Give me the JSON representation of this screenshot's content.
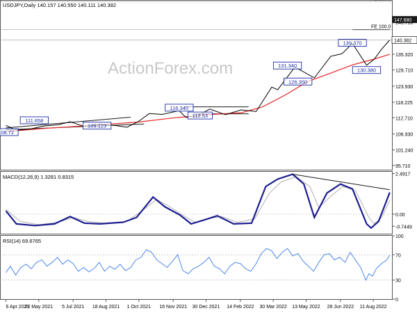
{
  "chart_data": {
    "type": "line",
    "main": {
      "header": "USDJPY,Daily  140.157 140.550 140.111 140.382",
      "watermark": "ActionForex.com",
      "ylim": [
        94.2,
        154.4
      ],
      "y_ticks": [
        "146.710",
        "141.015",
        "135.320",
        "129.710",
        "123.930",
        "118.225",
        "112.710",
        "106.930",
        "101.240",
        "95.710"
      ],
      "current_price": "140.382",
      "fe_labels": [
        {
          "text": "FE 100.0",
          "price": 154.0
        },
        {
          "text": "147.680",
          "price": 147.68,
          "badge": true
        },
        {
          "text": "FE 100.0",
          "price": 144.1
        }
      ],
      "labels": [
        {
          "text": "111.658",
          "date": "2021-05-14",
          "price": 111.8
        },
        {
          "text": "109.123",
          "date": "2021-08-06",
          "price": 109.9
        },
        {
          "text": "108.72",
          "date": "2021-04-06",
          "price": 107.6
        },
        {
          "text": "116.340",
          "date": "2021-11-24",
          "price": 116.3
        },
        {
          "text": "112.53",
          "date": "2021-12-22",
          "price": 113.5
        },
        {
          "text": "131.340",
          "date": "2022-04-18",
          "price": 131.3
        },
        {
          "text": "126.350",
          "date": "2022-05-02",
          "price": 125.6
        },
        {
          "text": "139.370",
          "date": "2022-07-14",
          "price": 139.4
        },
        {
          "text": "130.380",
          "date": "2022-08-02",
          "price": 129.7
        }
      ],
      "price_series": [
        [
          "2021-04-06",
          110.0
        ],
        [
          "2021-04-20",
          108.3
        ],
        [
          "2021-05-10",
          108.8
        ],
        [
          "2021-05-28",
          109.8
        ],
        [
          "2021-06-15",
          110.2
        ],
        [
          "2021-07-01",
          111.3
        ],
        [
          "2021-07-20",
          109.6
        ],
        [
          "2021-08-10",
          110.4
        ],
        [
          "2021-09-01",
          109.9
        ],
        [
          "2021-09-15",
          109.3
        ],
        [
          "2021-09-30",
          111.3
        ],
        [
          "2021-10-15",
          114.2
        ],
        [
          "2021-11-01",
          113.9
        ],
        [
          "2021-11-24",
          115.2
        ],
        [
          "2021-12-03",
          112.8
        ],
        [
          "2021-12-20",
          113.6
        ],
        [
          "2022-01-04",
          115.8
        ],
        [
          "2022-01-25",
          113.8
        ],
        [
          "2022-02-15",
          115.5
        ],
        [
          "2022-03-07",
          114.9
        ],
        [
          "2022-03-28",
          123.6
        ],
        [
          "2022-04-05",
          122.7
        ],
        [
          "2022-04-28",
          130.8
        ],
        [
          "2022-05-24",
          126.9
        ],
        [
          "2022-06-15",
          134.6
        ],
        [
          "2022-06-30",
          135.5
        ],
        [
          "2022-07-14",
          139.2
        ],
        [
          "2022-08-02",
          131.4
        ],
        [
          "2022-08-12",
          133.5
        ],
        [
          "2022-08-22",
          137.1
        ],
        [
          "2022-09-02",
          140.4
        ]
      ],
      "ma_series": [
        [
          "2021-04-06",
          107.8
        ],
        [
          "2021-06-01",
          109.0
        ],
        [
          "2021-08-01",
          110.0
        ],
        [
          "2021-10-01",
          111.2
        ],
        [
          "2021-11-15",
          112.6
        ],
        [
          "2022-01-01",
          113.8
        ],
        [
          "2022-02-15",
          114.5
        ],
        [
          "2022-03-15",
          116.5
        ],
        [
          "2022-04-15",
          120.8
        ],
        [
          "2022-05-15",
          125.6
        ],
        [
          "2022-06-15",
          128.6
        ],
        [
          "2022-07-15",
          131.6
        ],
        [
          "2022-08-12",
          133.6
        ],
        [
          "2022-09-02",
          135.3
        ]
      ],
      "trendlines": [
        [
          [
            "2021-04-06",
            109.1
          ],
          [
            "2021-09-20",
            112.9
          ]
        ],
        [
          [
            "2021-04-06",
            108.4
          ],
          [
            "2021-10-08",
            110.5
          ]
        ],
        [
          [
            "2021-11-30",
            116.6
          ],
          [
            "2022-02-25",
            116.6
          ]
        ],
        [
          [
            "2021-12-13",
            114.1
          ],
          [
            "2022-02-25",
            114.1
          ]
        ],
        [
          [
            "2022-07-14",
            144.1
          ],
          [
            "2022-09-02",
            144.1
          ]
        ]
      ]
    },
    "macd": {
      "header": "MACD(12,26,9) 1.3281 0.8315",
      "ylim": [
        -1.2,
        2.6
      ],
      "y_ticks": [
        "2.4917",
        "0.00",
        "-0.7449"
      ],
      "macd_series": [
        [
          "2021-04-06",
          0.2
        ],
        [
          "2021-04-20",
          -0.6
        ],
        [
          "2021-05-15",
          -0.7
        ],
        [
          "2021-06-10",
          -0.6
        ],
        [
          "2021-07-01",
          -0.15
        ],
        [
          "2021-07-20",
          -0.55
        ],
        [
          "2021-08-10",
          -0.6
        ],
        [
          "2021-09-10",
          -0.5
        ],
        [
          "2021-09-28",
          -0.2
        ],
        [
          "2021-10-20",
          1.05
        ],
        [
          "2021-11-05",
          0.45
        ],
        [
          "2021-11-25",
          -0.05
        ],
        [
          "2021-12-10",
          -0.6
        ],
        [
          "2021-12-28",
          -0.35
        ],
        [
          "2022-01-14",
          -0.1
        ],
        [
          "2022-02-05",
          -0.6
        ],
        [
          "2022-03-01",
          -0.55
        ],
        [
          "2022-03-20",
          1.7
        ],
        [
          "2022-04-05",
          2.15
        ],
        [
          "2022-04-25",
          2.45
        ],
        [
          "2022-05-10",
          1.85
        ],
        [
          "2022-05-24",
          -0.2
        ],
        [
          "2022-06-10",
          1.3
        ],
        [
          "2022-06-28",
          1.85
        ],
        [
          "2022-07-14",
          1.55
        ],
        [
          "2022-08-02",
          -0.6
        ],
        [
          "2022-08-08",
          -0.85
        ],
        [
          "2022-08-18",
          -0.45
        ],
        [
          "2022-09-02",
          1.33
        ]
      ],
      "signal_series": [
        [
          "2021-04-06",
          0.3
        ],
        [
          "2021-04-25",
          -0.45
        ],
        [
          "2021-05-20",
          -0.65
        ],
        [
          "2021-06-15",
          -0.5
        ],
        [
          "2021-07-05",
          -0.2
        ],
        [
          "2021-07-25",
          -0.45
        ],
        [
          "2021-08-15",
          -0.55
        ],
        [
          "2021-09-15",
          -0.45
        ],
        [
          "2021-10-05",
          0.2
        ],
        [
          "2021-10-25",
          0.9
        ],
        [
          "2021-11-10",
          0.5
        ],
        [
          "2021-11-30",
          -0.1
        ],
        [
          "2021-12-15",
          -0.5
        ],
        [
          "2022-01-05",
          -0.25
        ],
        [
          "2022-01-20",
          -0.15
        ],
        [
          "2022-02-10",
          -0.5
        ],
        [
          "2022-03-05",
          -0.3
        ],
        [
          "2022-03-25",
          1.3
        ],
        [
          "2022-04-10",
          2.0
        ],
        [
          "2022-04-30",
          2.3
        ],
        [
          "2022-05-18",
          1.7
        ],
        [
          "2022-05-30",
          0.4
        ],
        [
          "2022-06-15",
          1.1
        ],
        [
          "2022-07-01",
          1.7
        ],
        [
          "2022-07-18",
          1.45
        ],
        [
          "2022-08-05",
          -0.2
        ],
        [
          "2022-08-12",
          -0.6
        ],
        [
          "2022-08-22",
          -0.2
        ],
        [
          "2022-09-02",
          0.83
        ]
      ],
      "trendline": [
        [
          "2022-04-25",
          2.45
        ],
        [
          "2022-09-02",
          1.5
        ]
      ]
    },
    "rsi": {
      "header": "RSI(14) 69.6765",
      "ylim": [
        0,
        100
      ],
      "y_ticks": [
        "100",
        "70",
        "30",
        "0"
      ],
      "levels": [
        70,
        30
      ],
      "rsi_series": [
        [
          "2021-04-06",
          42
        ],
        [
          "2021-04-12",
          52
        ],
        [
          "2021-04-19",
          38
        ],
        [
          "2021-04-26",
          50
        ],
        [
          "2021-05-03",
          55
        ],
        [
          "2021-05-10",
          48
        ],
        [
          "2021-05-17",
          58
        ],
        [
          "2021-05-24",
          62
        ],
        [
          "2021-05-31",
          52
        ],
        [
          "2021-06-07",
          58
        ],
        [
          "2021-06-14",
          66
        ],
        [
          "2021-06-21",
          55
        ],
        [
          "2021-06-28",
          62
        ],
        [
          "2021-07-05",
          56
        ],
        [
          "2021-07-12",
          44
        ],
        [
          "2021-07-19",
          50
        ],
        [
          "2021-07-26",
          43
        ],
        [
          "2021-08-02",
          48
        ],
        [
          "2021-08-09",
          58
        ],
        [
          "2021-08-16",
          44
        ],
        [
          "2021-08-23",
          52
        ],
        [
          "2021-08-30",
          47
        ],
        [
          "2021-09-06",
          55
        ],
        [
          "2021-09-13",
          45
        ],
        [
          "2021-09-20",
          50
        ],
        [
          "2021-09-27",
          62
        ],
        [
          "2021-10-04",
          66
        ],
        [
          "2021-10-11",
          78
        ],
        [
          "2021-10-18",
          74
        ],
        [
          "2021-10-25",
          62
        ],
        [
          "2021-11-01",
          56
        ],
        [
          "2021-11-08",
          50
        ],
        [
          "2021-11-15",
          60
        ],
        [
          "2021-11-22",
          70
        ],
        [
          "2021-11-29",
          45
        ],
        [
          "2021-12-06",
          40
        ],
        [
          "2021-12-13",
          48
        ],
        [
          "2021-12-20",
          52
        ],
        [
          "2021-12-27",
          58
        ],
        [
          "2022-01-03",
          66
        ],
        [
          "2022-01-10",
          52
        ],
        [
          "2022-01-17",
          48
        ],
        [
          "2022-01-24",
          40
        ],
        [
          "2022-01-31",
          52
        ],
        [
          "2022-02-07",
          58
        ],
        [
          "2022-02-14",
          56
        ],
        [
          "2022-02-21",
          48
        ],
        [
          "2022-02-28",
          44
        ],
        [
          "2022-03-07",
          56
        ],
        [
          "2022-03-14",
          72
        ],
        [
          "2022-03-21",
          80
        ],
        [
          "2022-03-28",
          76
        ],
        [
          "2022-04-04",
          64
        ],
        [
          "2022-04-11",
          74
        ],
        [
          "2022-04-18",
          80
        ],
        [
          "2022-04-25",
          68
        ],
        [
          "2022-05-02",
          72
        ],
        [
          "2022-05-09",
          60
        ],
        [
          "2022-05-16",
          52
        ],
        [
          "2022-05-23",
          44
        ],
        [
          "2022-05-30",
          58
        ],
        [
          "2022-06-06",
          70
        ],
        [
          "2022-06-13",
          72
        ],
        [
          "2022-06-20",
          62
        ],
        [
          "2022-06-27",
          66
        ],
        [
          "2022-07-04",
          58
        ],
        [
          "2022-07-11",
          74
        ],
        [
          "2022-07-18",
          62
        ],
        [
          "2022-07-25",
          50
        ],
        [
          "2022-08-01",
          30
        ],
        [
          "2022-08-05",
          40
        ],
        [
          "2022-08-10",
          36
        ],
        [
          "2022-08-15",
          48
        ],
        [
          "2022-08-22",
          56
        ],
        [
          "2022-08-29",
          62
        ],
        [
          "2022-09-02",
          69.7
        ]
      ]
    },
    "x_axis": {
      "start": "2021-03-30",
      "end": "2022-09-05",
      "ticks": [
        {
          "date": "2021-04-06",
          "label": "6 Apr 2021"
        },
        {
          "date": "2021-05-20",
          "label": "20 May 2021"
        },
        {
          "date": "2021-07-05",
          "label": "5 Jul 2021"
        },
        {
          "date": "2021-08-18",
          "label": "18 Aug 2021"
        },
        {
          "date": "2021-10-01",
          "label": "1 Oct 2021"
        },
        {
          "date": "2021-11-16",
          "label": "16 Nov 2021"
        },
        {
          "date": "2021-12-30",
          "label": "30 Dec 2021"
        },
        {
          "date": "2022-02-14",
          "label": "14 Feb 2022"
        },
        {
          "date": "2022-03-30",
          "label": "30 Mar 2022"
        },
        {
          "date": "2022-05-13",
          "label": "13 May 2022"
        },
        {
          "date": "2022-06-28",
          "label": "28 Jun 2022"
        },
        {
          "date": "2022-08-11",
          "label": "11 Aug 2022"
        }
      ]
    },
    "colors": {
      "price": "#000000",
      "ma": "#e52525",
      "trendline": "#1a1a1a",
      "macd": "#1c1c8f",
      "signal": "#b0b0b0",
      "rsi": "#4a86e8",
      "label_box": "#1a2ca3",
      "level": "#aaaaaa",
      "watermark": "#c8c8c8"
    }
  }
}
